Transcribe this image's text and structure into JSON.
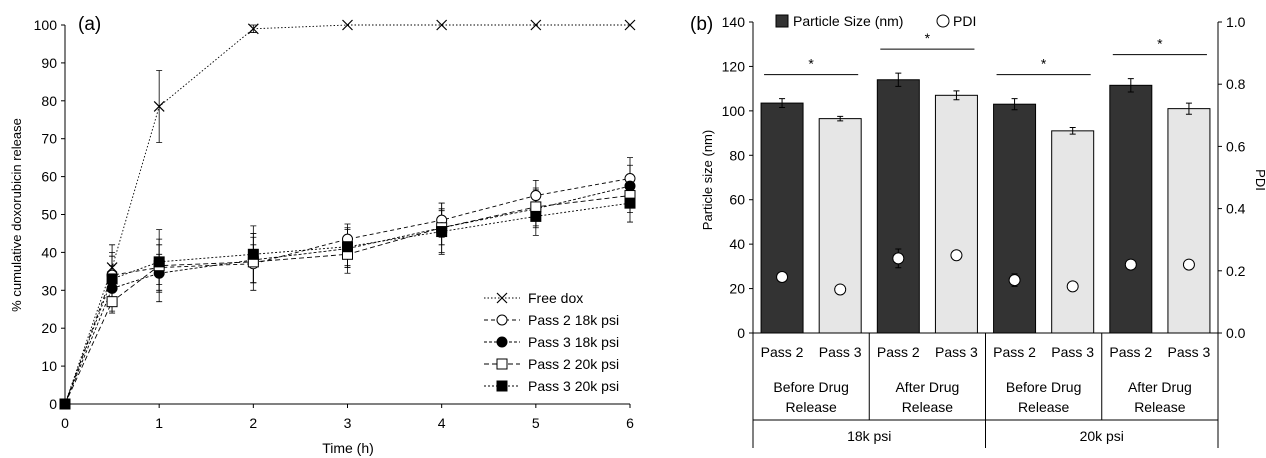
{
  "chart_data": [
    {
      "panel": "(a)",
      "type": "line",
      "xlabel": "Time (h)",
      "ylabel": "% cumulative doxorubicin release",
      "xlim": [
        0,
        6
      ],
      "ylim": [
        0,
        100
      ],
      "xticks": [
        "0",
        "1",
        "2",
        "3",
        "4",
        "5",
        "6"
      ],
      "yticks": [
        "0",
        "10",
        "20",
        "30",
        "40",
        "50",
        "60",
        "70",
        "80",
        "90",
        "100"
      ],
      "legend_position": "bottom-right",
      "grid": false,
      "x": [
        0,
        0.5,
        1,
        2,
        3,
        4,
        5,
        6
      ],
      "series": [
        {
          "name": "Free dox",
          "marker": "x",
          "values": [
            0,
            36,
            78.5,
            99,
            100,
            100,
            100,
            100
          ],
          "errors": [
            0,
            6,
            9.5,
            1,
            0,
            0,
            0,
            0
          ]
        },
        {
          "name": "Pass 2 18k psi",
          "marker": "open-circle",
          "values": [
            0,
            34,
            36,
            37,
            43.5,
            48.5,
            55,
            59.5
          ],
          "errors": [
            0,
            6,
            6,
            5,
            4,
            4.5,
            4,
            5.5
          ]
        },
        {
          "name": "Pass 3 18k psi",
          "marker": "filled-circle",
          "values": [
            0,
            30.5,
            34.5,
            38,
            41,
            46.5,
            51.5,
            57.5
          ],
          "errors": [
            0,
            6,
            5,
            6,
            5,
            4.5,
            5,
            5.5
          ]
        },
        {
          "name": "Pass 2 20k psi",
          "marker": "open-square",
          "values": [
            0,
            27,
            36.5,
            37.5,
            39.5,
            46.5,
            52,
            55
          ],
          "errors": [
            0,
            3,
            9.5,
            7.5,
            5,
            6.5,
            5,
            4.5
          ]
        },
        {
          "name": "Pass 3 20k psi",
          "marker": "filled-square",
          "values": [
            0,
            33,
            37.5,
            39.5,
            41.5,
            45.5,
            49.5,
            53
          ],
          "errors": [
            0,
            6,
            6,
            7.5,
            5,
            6,
            5,
            5
          ]
        }
      ]
    },
    {
      "panel": "(b)",
      "type": "bar",
      "ylabel": "Particle size (nm)",
      "y2label": "PDI",
      "ylim": [
        0,
        140
      ],
      "y2lim": [
        0,
        1.0
      ],
      "yticks": [
        "0",
        "20",
        "40",
        "60",
        "80",
        "100",
        "120",
        "140"
      ],
      "y2ticks": [
        "0.0",
        "0.2",
        "0.4",
        "0.6",
        "0.8",
        "1.0"
      ],
      "legend_position": "top",
      "legend": [
        "Particle Size (nm)",
        "PDI"
      ],
      "categories": [
        "Pass 2",
        "Pass 3",
        "Pass 2",
        "Pass 3",
        "Pass 2",
        "Pass 3",
        "Pass 2",
        "Pass 3"
      ],
      "groups": [
        "Before Drug Release",
        "After Drug Release",
        "Before Drug Release",
        "After Drug Release"
      ],
      "supergroups": [
        "18k psi",
        "20k psi"
      ],
      "significance": [
        "*",
        "*",
        "*",
        "*"
      ],
      "bar_colors": [
        "#333333",
        "#e6e6e6",
        "#333333",
        "#e6e6e6",
        "#333333",
        "#e6e6e6",
        "#333333",
        "#e6e6e6"
      ],
      "series": [
        {
          "name": "Particle Size (nm)",
          "values": [
            103.5,
            96.5,
            114,
            107,
            103,
            91,
            111.5,
            101
          ],
          "errors": [
            2,
            1,
            3,
            2,
            2.5,
            1.5,
            3,
            2.5
          ]
        },
        {
          "name": "PDI",
          "values": [
            0.18,
            0.14,
            0.24,
            0.25,
            0.17,
            0.15,
            0.22,
            0.22
          ],
          "errors": [
            0,
            0,
            0.03,
            0,
            0.02,
            0,
            0,
            0
          ]
        }
      ]
    }
  ]
}
